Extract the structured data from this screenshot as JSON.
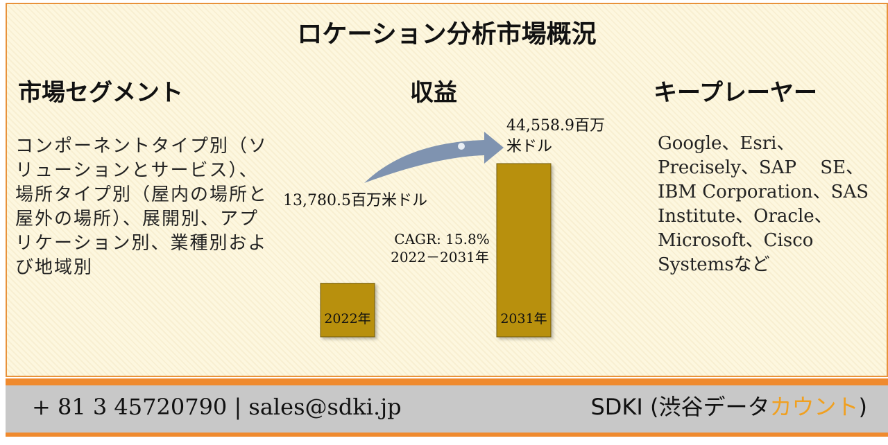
{
  "title": "ロケーション分析市場概況",
  "segment": {
    "heading": "市場セグメント",
    "text": "コンポーネントタイプ別（ソリューションとサービス）、場所タイプ別（屋内の場所と屋外の場所）、展開別、アプリケーション別、業種別および地域別"
  },
  "revenue": {
    "heading": "収益"
  },
  "players": {
    "heading": "キープレーヤー",
    "text": "Google、Esri、Precisely、SAP　 SE、IBM Corporation、SAS Institute、Oracle、Microsoft、Cisco Systemsなど"
  },
  "chart_data": {
    "type": "bar",
    "categories": [
      "2022年",
      "2031年"
    ],
    "values": [
      13780.5,
      44558.9
    ],
    "value_labels": [
      "13,780.5百万米ドル",
      "44,558.9百万米ドル"
    ],
    "cagr_text": "CAGR: 15.8%",
    "cagr_period": "2022－2031年",
    "bar_color": "#b8900f",
    "arrow_color": "#7f93b0"
  },
  "footer": {
    "contact": "+ 81 3 45720790 | sales@sdki.jp",
    "brand_prefix": "SDKI (渋谷データ",
    "brand_accent": "カウント",
    "brand_suffix": ")",
    "accent_color": "#f0a020"
  }
}
